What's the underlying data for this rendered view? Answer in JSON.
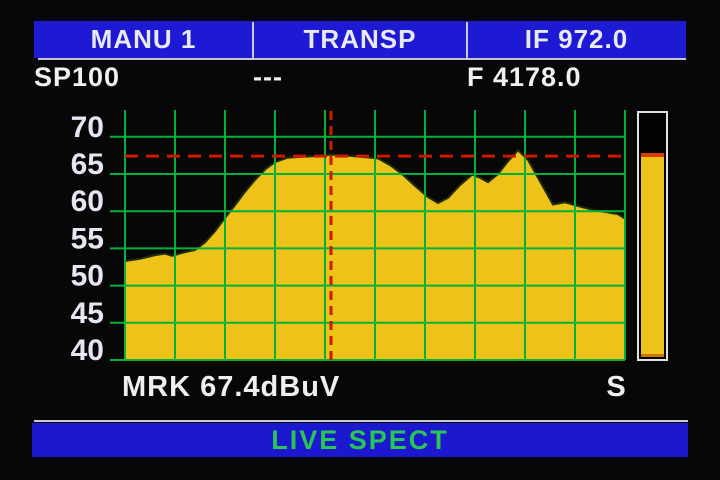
{
  "header": {
    "cells": [
      {
        "label": "MANU 1"
      },
      {
        "label": "TRANSP"
      },
      {
        "label": "IF 972.0"
      }
    ],
    "sub_cells": [
      {
        "label": "SP100"
      },
      {
        "label": "---"
      },
      {
        "label": "F 4178.0"
      }
    ]
  },
  "chart_data": {
    "type": "area",
    "title": "",
    "xlabel": "",
    "ylabel": "dBuV",
    "ylim": [
      40,
      73.6
    ],
    "y_ticks": [
      70,
      65,
      60,
      55,
      50,
      45,
      40
    ],
    "x_tick_labels": [],
    "x_gridline_count": 11,
    "grid": true,
    "legend": "none",
    "marker": {
      "level_dbuv": 67.4,
      "x_fraction": 0.412
    },
    "series": [
      {
        "name": "live-spectrum",
        "points": [
          [
            0.0,
            53.3
          ],
          [
            0.03,
            53.6
          ],
          [
            0.06,
            54.1
          ],
          [
            0.08,
            54.3
          ],
          [
            0.094,
            54.0
          ],
          [
            0.114,
            54.4
          ],
          [
            0.14,
            54.8
          ],
          [
            0.16,
            55.8
          ],
          [
            0.18,
            57.3
          ],
          [
            0.2,
            59.1
          ],
          [
            0.22,
            60.8
          ],
          [
            0.24,
            62.6
          ],
          [
            0.26,
            64.2
          ],
          [
            0.28,
            65.6
          ],
          [
            0.3,
            66.6
          ],
          [
            0.326,
            67.2
          ],
          [
            0.35,
            67.3
          ],
          [
            0.38,
            67.4
          ],
          [
            0.412,
            67.6
          ],
          [
            0.44,
            67.5
          ],
          [
            0.474,
            67.3
          ],
          [
            0.506,
            67.1
          ],
          [
            0.53,
            66.2
          ],
          [
            0.554,
            65.0
          ],
          [
            0.58,
            63.4
          ],
          [
            0.606,
            61.9
          ],
          [
            0.626,
            61.1
          ],
          [
            0.646,
            61.8
          ],
          [
            0.67,
            63.5
          ],
          [
            0.694,
            64.9
          ],
          [
            0.71,
            64.5
          ],
          [
            0.726,
            63.9
          ],
          [
            0.746,
            65.0
          ],
          [
            0.766,
            66.7
          ],
          [
            0.786,
            68.2
          ],
          [
            0.806,
            66.9
          ],
          [
            0.83,
            64.0
          ],
          [
            0.856,
            60.9
          ],
          [
            0.88,
            61.2
          ],
          [
            0.906,
            60.7
          ],
          [
            0.934,
            60.2
          ],
          [
            0.96,
            59.9
          ],
          [
            0.986,
            59.6
          ],
          [
            1.0,
            59.0
          ]
        ]
      }
    ],
    "colors": {
      "trace_fill": "#edc31a",
      "trace_edge": "#1f2d08",
      "grid": "#00b23c",
      "marker": "#d01700",
      "tick_label": "#e9e3f2"
    }
  },
  "signal_bar": {
    "fill_percent": 83,
    "fill_color": "#edc31a",
    "peak_color": "#dd3c00"
  },
  "footer": {
    "marker_readout": "MRK 67.4dBuV",
    "signal_label": "S",
    "status": "LIVE SPECT"
  },
  "colors": {
    "bar_blue": "#1e19d2",
    "status_green": "#27c754",
    "text_white": "#f0f0f0",
    "background": "#070707"
  }
}
